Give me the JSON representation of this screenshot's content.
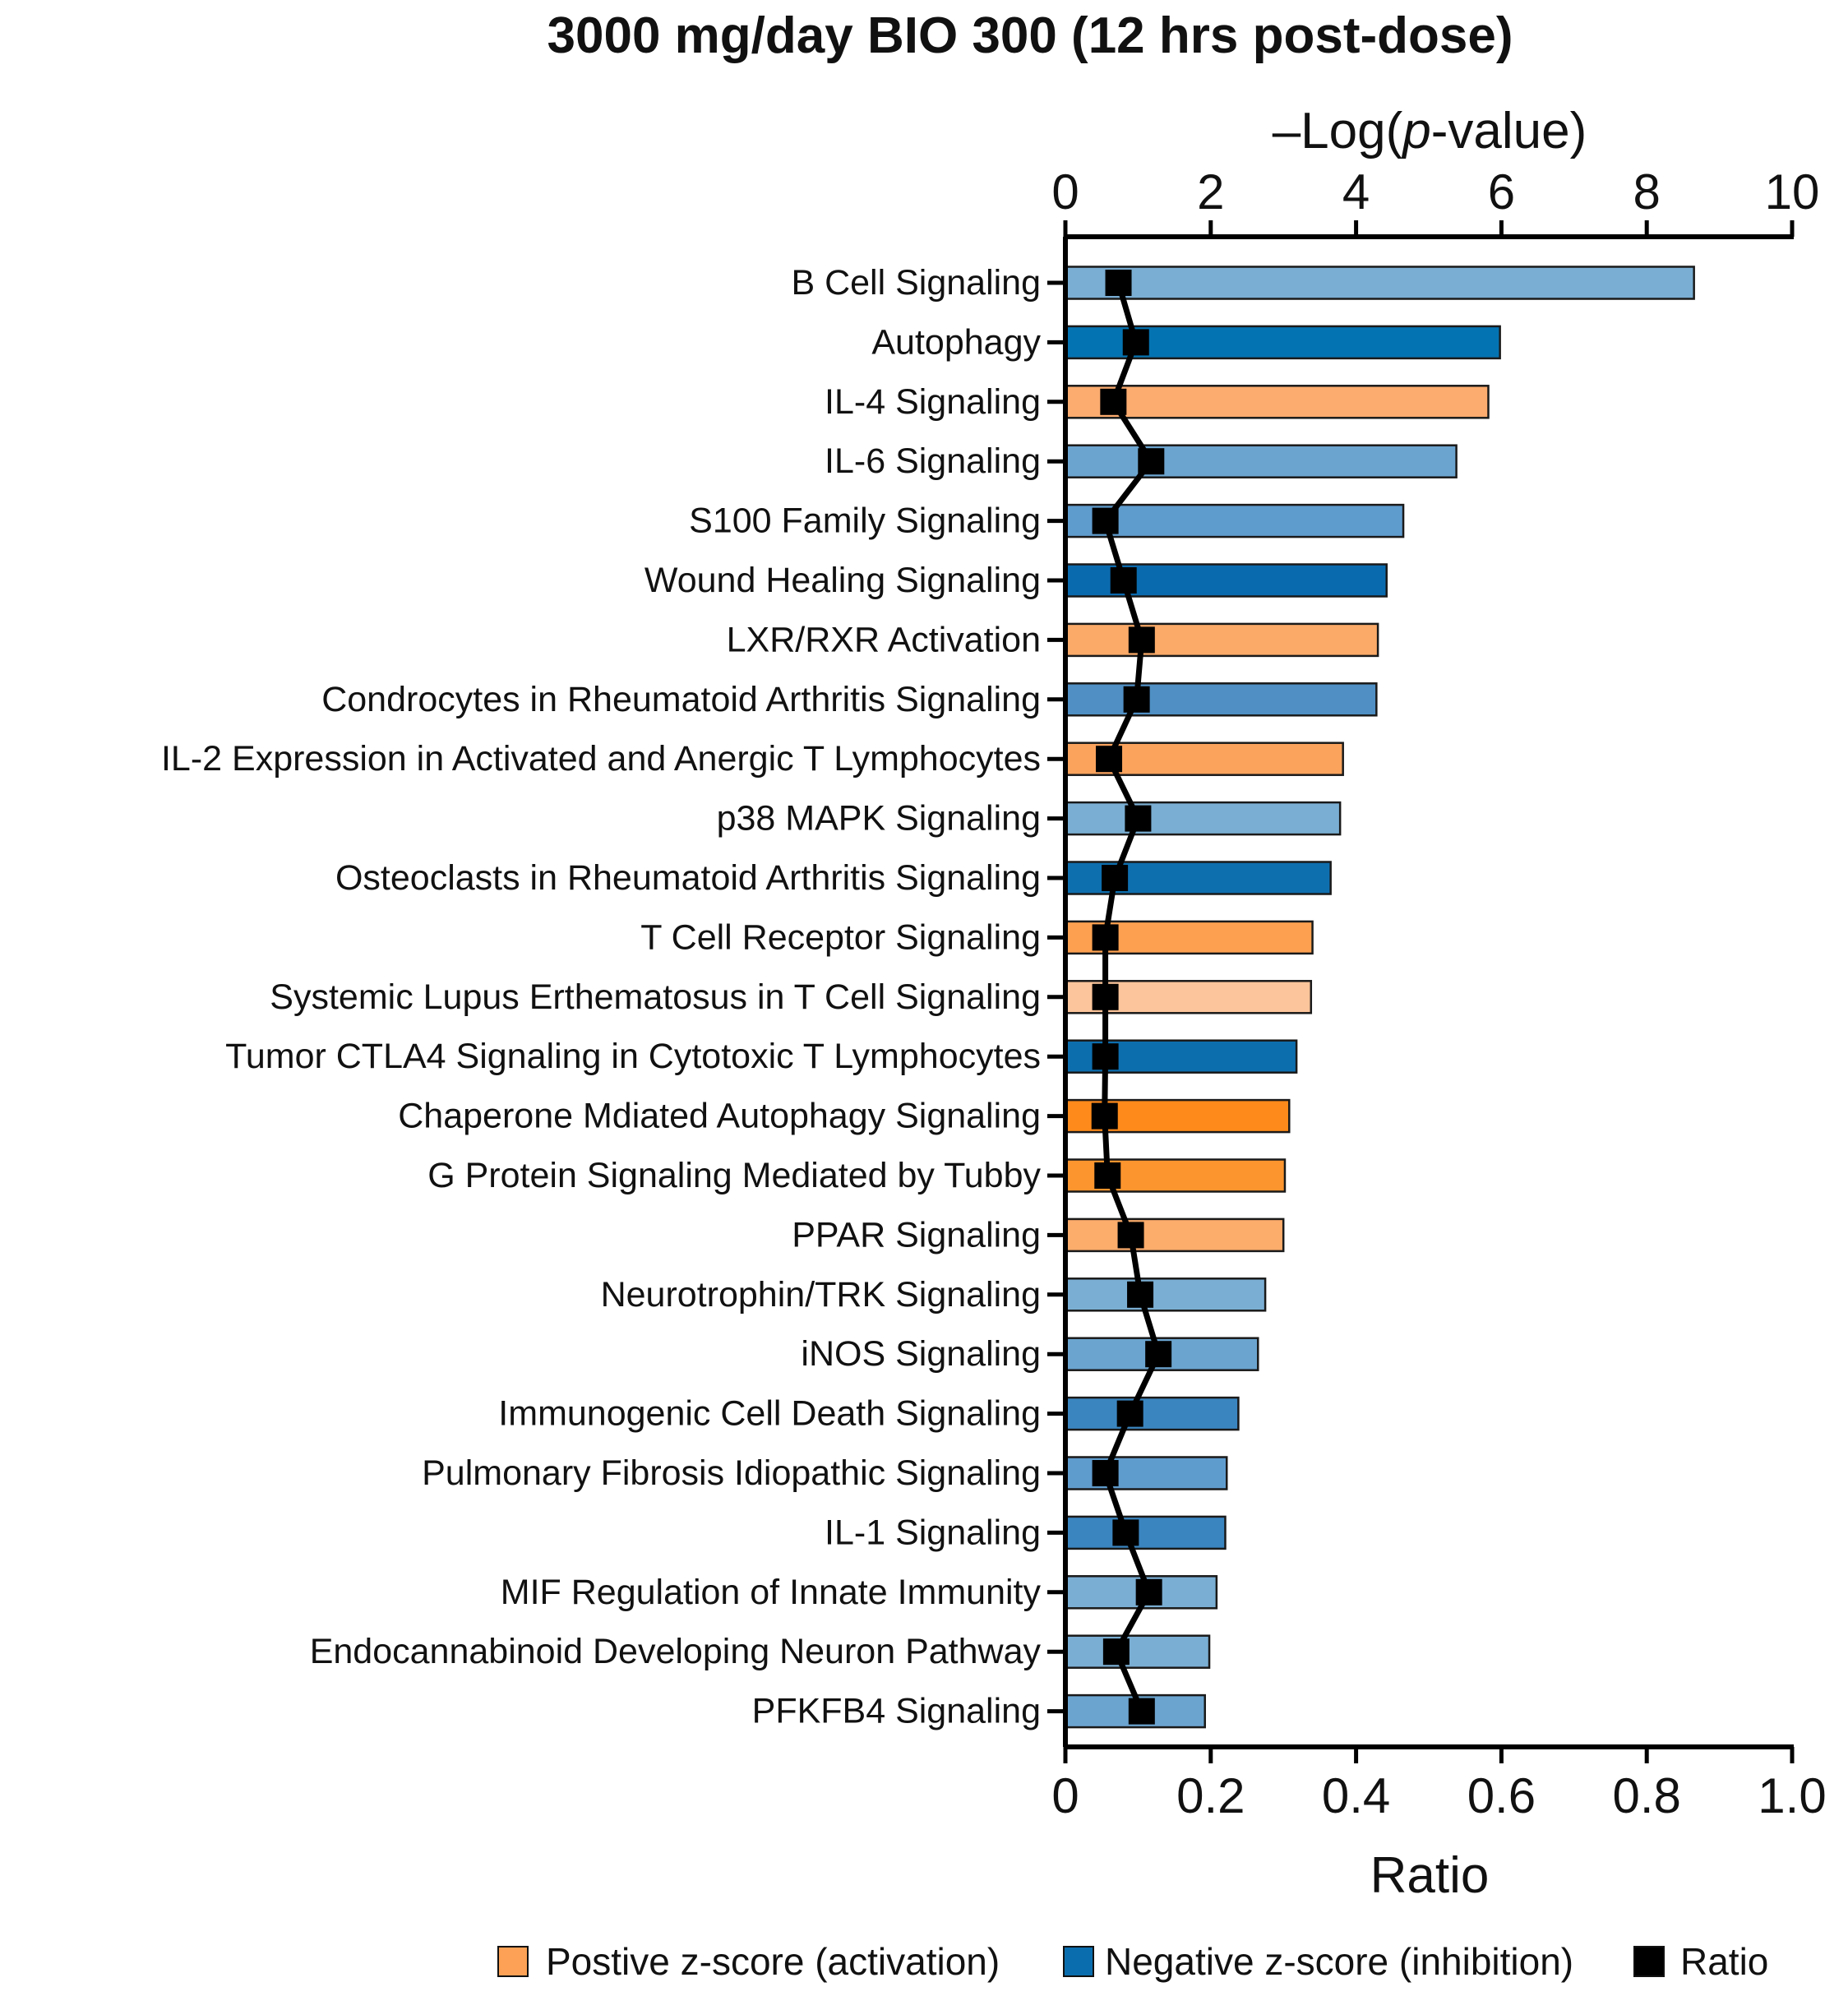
{
  "chart_data": {
    "type": "bar",
    "title": "3000 mg/day BIO 300 (12 hrs post-dose)",
    "top_axis": {
      "label_prefix": "–Log(",
      "label_italic": "p",
      "label_suffix": "-value)",
      "range": [
        0,
        10
      ],
      "ticks": [
        {
          "value": 0,
          "label": "0"
        },
        {
          "value": 2,
          "label": "2"
        },
        {
          "value": 4,
          "label": "4"
        },
        {
          "value": 6,
          "label": "6"
        },
        {
          "value": 8,
          "label": "8"
        },
        {
          "value": 10,
          "label": "10"
        }
      ]
    },
    "bottom_axis": {
      "label": "Ratio",
      "range": [
        0,
        1.0
      ],
      "ticks": [
        {
          "value": 0,
          "label": "0"
        },
        {
          "value": 0.2,
          "label": "0.2"
        },
        {
          "value": 0.4,
          "label": "0.4"
        },
        {
          "value": 0.6,
          "label": "0.6"
        },
        {
          "value": 0.8,
          "label": "0.8"
        },
        {
          "value": 1.0,
          "label": "1.0"
        }
      ]
    },
    "categories": [
      "B Cell Signaling",
      "Autophagy",
      "IL-4 Signaling",
      "IL-6 Signaling",
      "S100 Family Signaling",
      "Wound Healing Signaling",
      "LXR/RXR Activation",
      "Condrocytes in Rheumatoid Arthritis Signaling",
      "IL-2 Expression in Activated and Anergic T Lymphocytes",
      "p38 MAPK Signaling",
      "Osteoclasts in Rheumatoid Arthritis Signaling",
      "T Cell Receptor Signaling",
      "Systemic Lupus Erthematosus in T Cell Signaling",
      "Tumor CTLA4 Signaling in Cytotoxic T Lymphocytes",
      "Chaperone Mdiated Autophagy Signaling",
      "G Protein Signaling Mediated by Tubby",
      "PPAR Signaling",
      "Neurotrophin/TRK Signaling",
      "iNOS Signaling",
      "Immunogenic Cell Death Signaling",
      "Pulmonary Fibrosis Idiopathic Signaling",
      "IL-1 Signaling",
      "MIF Regulation of Innate Immunity",
      "Endocannabinoid Developing Neuron Pathway",
      "PFKFB4 Signaling"
    ],
    "series": [
      {
        "name": "-Log(p-value)",
        "kind": "bar",
        "axis": "top",
        "values": [
          8.65,
          5.98,
          5.82,
          5.38,
          4.65,
          4.42,
          4.3,
          4.28,
          3.82,
          3.78,
          3.65,
          3.4,
          3.38,
          3.18,
          3.08,
          3.02,
          3.0,
          2.75,
          2.65,
          2.38,
          2.22,
          2.2,
          2.08,
          1.98,
          1.92
        ]
      },
      {
        "name": "Ratio",
        "kind": "line-with-square-markers",
        "axis": "bottom",
        "values": [
          0.073,
          0.097,
          0.066,
          0.118,
          0.055,
          0.08,
          0.105,
          0.098,
          0.06,
          0.1,
          0.068,
          0.055,
          0.055,
          0.055,
          0.054,
          0.058,
          0.09,
          0.103,
          0.128,
          0.089,
          0.055,
          0.083,
          0.115,
          0.07,
          0.105
        ]
      }
    ],
    "bar_colors": [
      "#7aaed3",
      "#0473b2",
      "#fcac6f",
      "#6ba4cf",
      "#5f9cce",
      "#0a6aae",
      "#fbaa68",
      "#4f8fc4",
      "#fba35d",
      "#7aaed3",
      "#0e6faf",
      "#fda150",
      "#fdc59b",
      "#0d6eae",
      "#fd8a1b",
      "#fd952e",
      "#fcac6b",
      "#7aaed3",
      "#6ba4cf",
      "#3a85c0",
      "#5f9cce",
      "#3a85c0",
      "#7aaed3",
      "#7aaed3",
      "#6ba4cf"
    ],
    "legend": {
      "placement": "bottom-center",
      "items": [
        {
          "label": "Postive z-score (activation)",
          "color": "#fca155"
        },
        {
          "label": "Negative z-score (inhibition)",
          "color": "#0a6eae"
        },
        {
          "label": "Ratio",
          "color": "#000000"
        }
      ]
    }
  }
}
